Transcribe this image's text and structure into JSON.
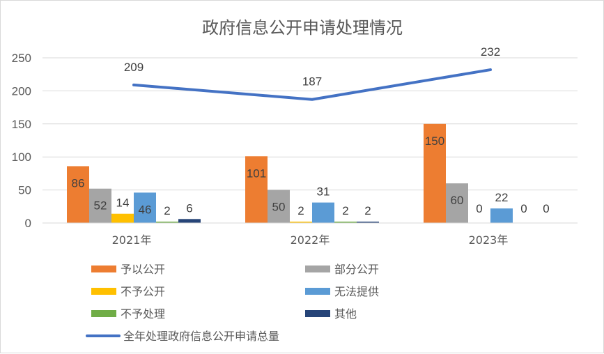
{
  "chart_data": {
    "type": "bar",
    "title": "政府信息公开申请处理情况",
    "categories": [
      "2021年",
      "2022年",
      "2023年"
    ],
    "ylim": [
      0,
      250
    ],
    "yticks": [
      0,
      50,
      100,
      150,
      200,
      250
    ],
    "grid": true,
    "legend_position": "bottom",
    "series": [
      {
        "name": "予以公开",
        "type": "bar",
        "color": "#ed7d31",
        "values": [
          86,
          101,
          150
        ]
      },
      {
        "name": "部分公开",
        "type": "bar",
        "color": "#a5a5a5",
        "values": [
          52,
          50,
          60
        ]
      },
      {
        "name": "不予公开",
        "type": "bar",
        "color": "#ffc000",
        "values": [
          14,
          2,
          0
        ]
      },
      {
        "name": "无法提供",
        "type": "bar",
        "color": "#5b9bd5",
        "values": [
          46,
          31,
          22
        ]
      },
      {
        "name": "不予处理",
        "type": "bar",
        "color": "#70ad47",
        "values": [
          2,
          2,
          0
        ]
      },
      {
        "name": "其他",
        "type": "bar",
        "color": "#264478",
        "values": [
          6,
          2,
          0
        ]
      },
      {
        "name": "全年处理政府信息公开申请总量",
        "type": "line",
        "color": "#4472c4",
        "values": [
          209,
          187,
          232
        ]
      }
    ],
    "data_labels": [
      [
        "86",
        "52",
        "14",
        "46",
        "2",
        "6"
      ],
      [
        "101",
        "50",
        "2",
        "31",
        "2",
        "2"
      ],
      [
        "150",
        "60",
        "0",
        "22",
        "0",
        "0"
      ]
    ],
    "line_labels": [
      "209",
      "187",
      "232"
    ]
  }
}
